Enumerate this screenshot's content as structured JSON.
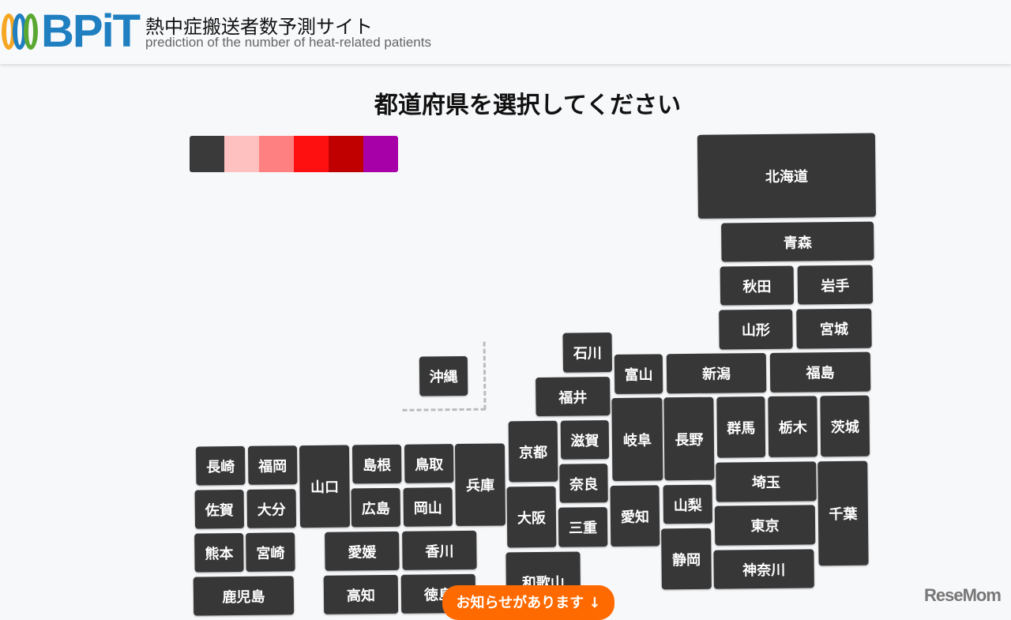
{
  "header": {
    "logo_text": "BPiT",
    "title": "熱中症搬送者数予測サイト",
    "subtitle": "prediction of the number of heat-related patients",
    "ring_colors": [
      "#f5a623",
      "#1f7fc0",
      "#5aa832"
    ]
  },
  "main": {
    "heading": "都道府県を選択してください"
  },
  "legend": {
    "colors": [
      "#3a3a3a",
      "#ffc0c0",
      "#ff8080",
      "#ff1010",
      "#c00000",
      "#a800a8"
    ]
  },
  "prefectures": [
    "北海道",
    "青森",
    "秋田",
    "岩手",
    "山形",
    "宮城",
    "石川",
    "沖縄",
    "富山",
    "新潟",
    "福島",
    "福井",
    "京都",
    "滋賀",
    "岐阜",
    "長野",
    "群馬",
    "栃木",
    "茨城",
    "長崎",
    "福岡",
    "山口",
    "島根",
    "鳥取",
    "兵庫",
    "奈良",
    "埼玉",
    "千葉",
    "佐賀",
    "大分",
    "広島",
    "岡山",
    "大阪",
    "三重",
    "愛知",
    "山梨",
    "東京",
    "熊本",
    "宮崎",
    "愛媛",
    "香川",
    "和歌山",
    "静岡",
    "神奈川",
    "鹿児島",
    "高知",
    "徳島"
  ],
  "notice": {
    "label": "お知らせがあります ↓"
  },
  "watermark": "ReseMom"
}
